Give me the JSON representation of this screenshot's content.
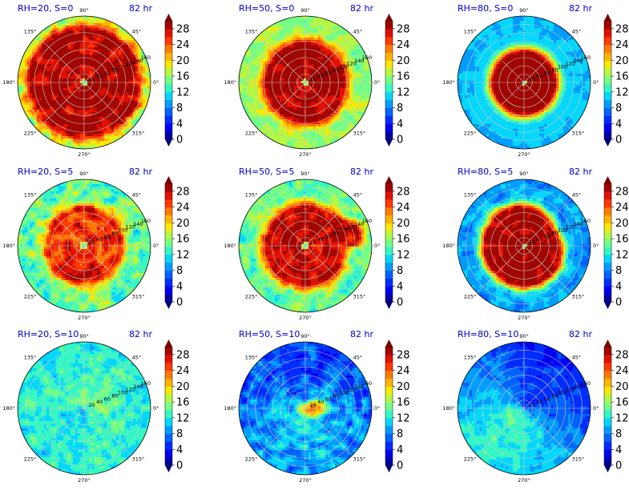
{
  "chart_data": {
    "type": "heatmap",
    "projection": "polar",
    "layout": {
      "rows": 3,
      "cols": 3
    },
    "colorbar": {
      "ticks": [
        0,
        4,
        8,
        12,
        16,
        20,
        24,
        28
      ],
      "tick_labels": [
        "0",
        "4",
        "8",
        "12",
        "16",
        "20",
        "24",
        "28"
      ],
      "range": [
        0,
        30
      ],
      "extend": "both",
      "levels": 15
    },
    "angle_ticks": [
      {
        "deg": 0,
        "label": "0°"
      },
      {
        "deg": 45,
        "label": "45°"
      },
      {
        "deg": 90,
        "label": "90°"
      },
      {
        "deg": 135,
        "label": "135°"
      },
      {
        "deg": 180,
        "label": "180°"
      },
      {
        "deg": 225,
        "label": "225°"
      },
      {
        "deg": 270,
        "label": "270°"
      },
      {
        "deg": 315,
        "label": "315°"
      }
    ],
    "radial_ticks": [
      20,
      40,
      60,
      80,
      100,
      120,
      140,
      160
    ],
    "radial_max": 160,
    "panels": [
      {
        "title": "RH=20, S=0",
        "time": "82 hr",
        "row": 0,
        "col": 0,
        "core_value": 29,
        "core_radius": 125,
        "background": 17,
        "eye_radius": 8,
        "noise": 5,
        "structure": "large-core"
      },
      {
        "title": "RH=50, S=0",
        "time": "82 hr",
        "row": 0,
        "col": 1,
        "core_value": 29,
        "core_radius": 90,
        "background": 17,
        "eye_radius": 7,
        "noise": 3,
        "structure": "medium-core"
      },
      {
        "title": "RH=80, S=0",
        "time": "82 hr",
        "row": 0,
        "col": 2,
        "core_value": 29,
        "core_radius": 70,
        "background": 11,
        "eye_radius": 5,
        "noise": 1,
        "structure": "symmetric"
      },
      {
        "title": "RH=20, S=5",
        "time": "82 hr",
        "row": 1,
        "col": 0,
        "core_value": 26,
        "core_radius": 85,
        "background": 15,
        "eye_radius": 10,
        "noise": 5,
        "structure": "ragged"
      },
      {
        "title": "RH=50, S=5",
        "time": "82 hr",
        "row": 1,
        "col": 1,
        "core_value": 28,
        "core_radius": 90,
        "background": 15,
        "eye_radius": 9,
        "noise": 4,
        "structure": "band-east"
      },
      {
        "title": "RH=80, S=5",
        "time": "82 hr",
        "row": 1,
        "col": 2,
        "core_value": 29,
        "core_radius": 90,
        "background": 10,
        "eye_radius": 6,
        "noise": 3,
        "structure": "band-north"
      },
      {
        "title": "RH=20, S=10",
        "time": "82 hr",
        "row": 2,
        "col": 0,
        "core_value": 14,
        "core_radius": 60,
        "background": 12,
        "eye_radius": 0,
        "noise": 4,
        "structure": "weak"
      },
      {
        "title": "RH=50, S=10",
        "time": "82 hr",
        "row": 2,
        "col": 1,
        "core_value": 22,
        "core_radius": 45,
        "background": 10,
        "eye_radius": 0,
        "noise": 5,
        "structure": "sheared"
      },
      {
        "title": "RH=80, S=10",
        "time": "82 hr",
        "row": 2,
        "col": 2,
        "core_value": 10,
        "core_radius": 60,
        "background": 10,
        "eye_radius": 0,
        "noise": 3,
        "structure": "split"
      }
    ]
  }
}
